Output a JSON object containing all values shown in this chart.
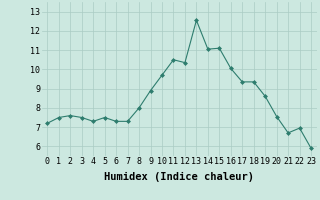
{
  "x": [
    0,
    1,
    2,
    3,
    4,
    5,
    6,
    7,
    8,
    9,
    10,
    11,
    12,
    13,
    14,
    15,
    16,
    17,
    18,
    19,
    20,
    21,
    22,
    23
  ],
  "y": [
    7.2,
    7.5,
    7.6,
    7.5,
    7.3,
    7.5,
    7.3,
    7.3,
    8.0,
    8.9,
    9.7,
    10.5,
    10.35,
    12.55,
    11.05,
    11.1,
    10.05,
    9.35,
    9.35,
    8.6,
    7.55,
    6.7,
    6.95,
    5.9
  ],
  "line_color": "#2e7d6e",
  "marker": "D",
  "marker_size": 2.0,
  "xlabel": "Humidex (Indice chaleur)",
  "xlim": [
    -0.5,
    23.5
  ],
  "ylim": [
    5.5,
    13.5
  ],
  "yticks": [
    6,
    7,
    8,
    9,
    10,
    11,
    12,
    13
  ],
  "xticks": [
    0,
    1,
    2,
    3,
    4,
    5,
    6,
    7,
    8,
    9,
    10,
    11,
    12,
    13,
    14,
    15,
    16,
    17,
    18,
    19,
    20,
    21,
    22,
    23
  ],
  "bg_color": "#cce8e0",
  "grid_color": "#aaccC4",
  "tick_label_fontsize": 6.0,
  "xlabel_fontsize": 7.5
}
